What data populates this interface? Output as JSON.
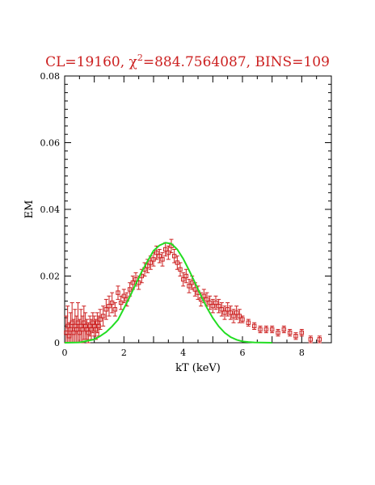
{
  "chart_data": {
    "type": "scatter",
    "title_parts": {
      "lead": "CL=19160, ",
      "chi": "χ",
      "sup": "2",
      "rest": "=884.7564087, BINS=109"
    },
    "xlabel": "kT (keV)",
    "ylabel": "EM",
    "xlim": [
      0,
      9
    ],
    "ylim": [
      0,
      0.08
    ],
    "xticks": [
      0,
      2,
      4,
      6,
      8
    ],
    "yticks": [
      0,
      0.02,
      0.04,
      0.06,
      0.08
    ],
    "ytick_labels": [
      "0",
      "0.02",
      "0.04",
      "0.06",
      "0.08"
    ],
    "grid": false,
    "colors": {
      "data": "#cc2020",
      "model": "#22dd22",
      "title": "#cc2020",
      "axes": "#000000"
    },
    "series": [
      {
        "kind": "points_with_errors",
        "x": [
          0.05,
          0.1,
          0.15,
          0.2,
          0.25,
          0.3,
          0.35,
          0.4,
          0.45,
          0.5,
          0.55,
          0.6,
          0.65,
          0.7,
          0.75,
          0.8,
          0.85,
          0.9,
          0.95,
          1.0,
          1.05,
          1.1,
          1.15,
          1.2,
          1.3,
          1.4,
          1.5,
          1.6,
          1.7,
          1.8,
          1.9,
          2.0,
          2.1,
          2.2,
          2.3,
          2.4,
          2.5,
          2.6,
          2.7,
          2.8,
          2.9,
          3.0,
          3.1,
          3.2,
          3.3,
          3.4,
          3.5,
          3.6,
          3.7,
          3.8,
          3.9,
          4.0,
          4.1,
          4.2,
          4.3,
          4.4,
          4.5,
          4.6,
          4.7,
          4.8,
          4.9,
          5.0,
          5.1,
          5.2,
          5.3,
          5.4,
          5.5,
          5.6,
          5.7,
          5.8,
          5.9,
          6.0,
          6.2,
          6.4,
          6.6,
          6.8,
          7.0,
          7.2,
          7.4,
          7.6,
          7.8,
          8.0,
          8.3,
          8.6
        ],
        "y": [
          0.003,
          0.005,
          0.002,
          0.004,
          0.006,
          0.003,
          0.005,
          0.004,
          0.006,
          0.003,
          0.005,
          0.004,
          0.006,
          0.005,
          0.004,
          0.003,
          0.005,
          0.004,
          0.006,
          0.005,
          0.004,
          0.006,
          0.005,
          0.007,
          0.008,
          0.01,
          0.011,
          0.012,
          0.01,
          0.015,
          0.012,
          0.014,
          0.013,
          0.016,
          0.018,
          0.019,
          0.018,
          0.02,
          0.022,
          0.023,
          0.024,
          0.025,
          0.027,
          0.026,
          0.025,
          0.028,
          0.027,
          0.029,
          0.026,
          0.024,
          0.022,
          0.019,
          0.02,
          0.017,
          0.018,
          0.016,
          0.015,
          0.013,
          0.014,
          0.013,
          0.012,
          0.011,
          0.012,
          0.011,
          0.01,
          0.009,
          0.01,
          0.009,
          0.008,
          0.009,
          0.008,
          0.007,
          0.006,
          0.005,
          0.004,
          0.004,
          0.004,
          0.003,
          0.004,
          0.003,
          0.002,
          0.003,
          0.001,
          0.001
        ],
        "err": [
          0.005,
          0.006,
          0.004,
          0.005,
          0.006,
          0.004,
          0.005,
          0.004,
          0.006,
          0.004,
          0.005,
          0.004,
          0.005,
          0.004,
          0.003,
          0.003,
          0.003,
          0.003,
          0.003,
          0.003,
          0.003,
          0.003,
          0.003,
          0.003,
          0.003,
          0.003,
          0.003,
          0.003,
          0.002,
          0.002,
          0.002,
          0.002,
          0.002,
          0.002,
          0.002,
          0.002,
          0.002,
          0.002,
          0.002,
          0.002,
          0.002,
          0.002,
          0.002,
          0.002,
          0.002,
          0.002,
          0.002,
          0.002,
          0.002,
          0.002,
          0.002,
          0.002,
          0.002,
          0.002,
          0.002,
          0.002,
          0.002,
          0.002,
          0.002,
          0.002,
          0.002,
          0.002,
          0.002,
          0.002,
          0.002,
          0.002,
          0.002,
          0.002,
          0.002,
          0.002,
          0.002,
          0.001,
          0.001,
          0.001,
          0.001,
          0.001,
          0.001,
          0.001,
          0.001,
          0.001,
          0.001,
          0.001,
          0.001,
          0.001
        ]
      },
      {
        "kind": "model_curve",
        "x": [
          0,
          0.5,
          1.0,
          1.2,
          1.4,
          1.6,
          1.8,
          2.0,
          2.2,
          2.4,
          2.6,
          2.8,
          3.0,
          3.2,
          3.4,
          3.6,
          3.8,
          4.0,
          4.2,
          4.4,
          4.6,
          4.8,
          5.0,
          5.2,
          5.4,
          5.6,
          5.8,
          6.0,
          6.2,
          6.4,
          7.0
        ],
        "y": [
          0,
          0.0001,
          0.001,
          0.002,
          0.0032,
          0.0049,
          0.0069,
          0.0103,
          0.0138,
          0.0176,
          0.0213,
          0.0245,
          0.0276,
          0.0292,
          0.03,
          0.0297,
          0.028,
          0.0252,
          0.0217,
          0.018,
          0.0141,
          0.0105,
          0.0074,
          0.0049,
          0.003,
          0.0017,
          0.0009,
          0.0004,
          0.0002,
          0.0001,
          0
        ]
      }
    ]
  }
}
